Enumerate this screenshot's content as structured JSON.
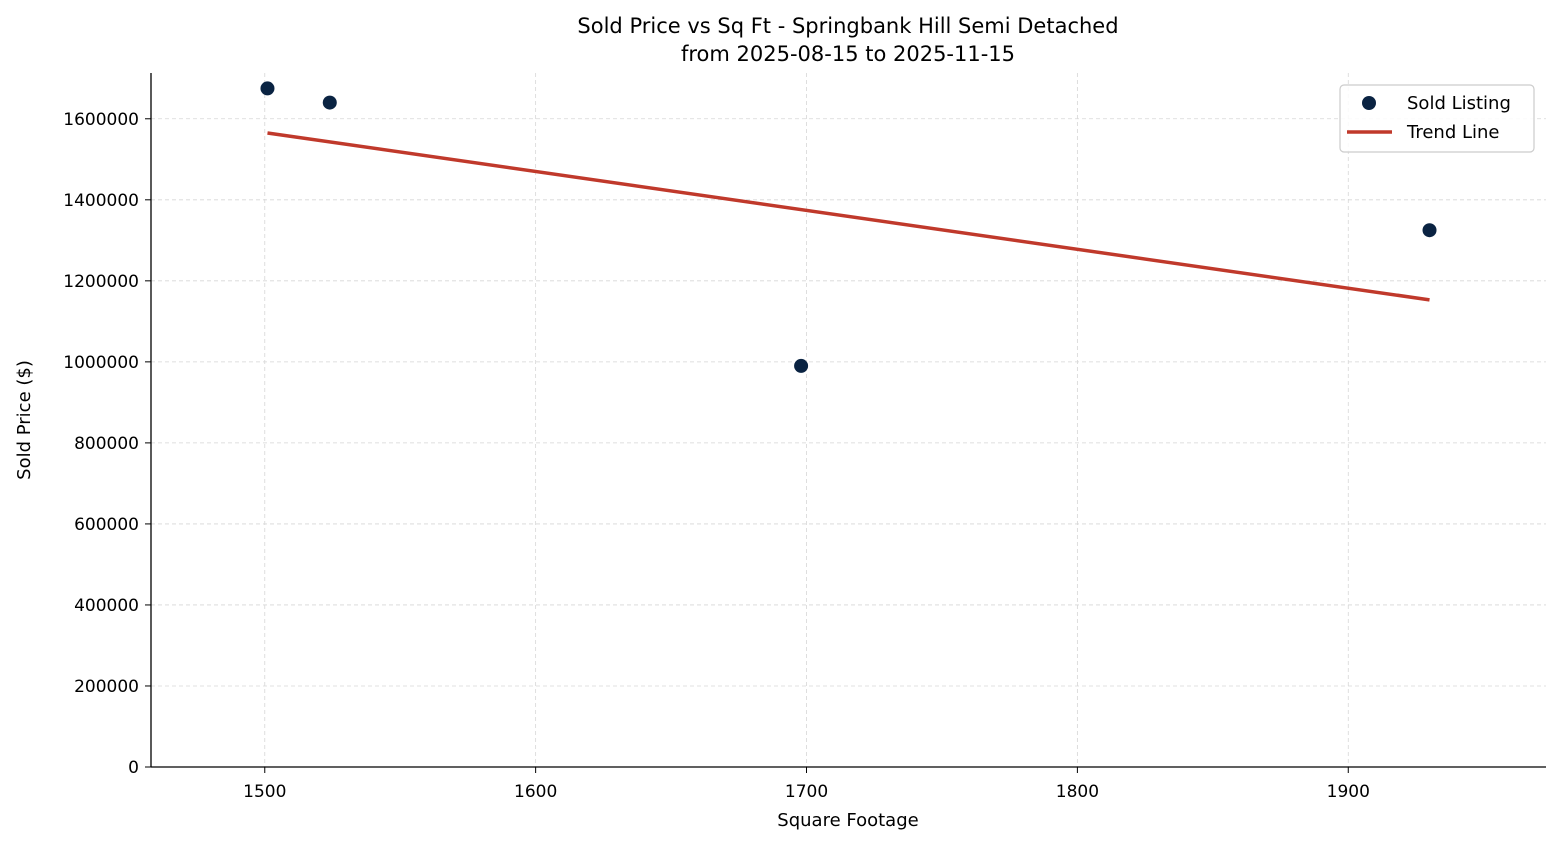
{
  "chart_data": {
    "type": "scatter",
    "title": "Sold Price vs Sq Ft - Springbank Hill Semi Detached",
    "subtitle": "from 2025-08-15 to 2025-11-15",
    "xlabel": "Square Footage",
    "ylabel": "Sold Price ($)",
    "xlim": [
      1458,
      1973
    ],
    "ylim": [
      0,
      1713000
    ],
    "xticks": [
      1500,
      1600,
      1700,
      1800,
      1900
    ],
    "yticks": [
      0,
      200000,
      400000,
      600000,
      800000,
      1000000,
      1200000,
      1400000,
      1600000
    ],
    "grid": true,
    "legend_position": "top-right",
    "series": [
      {
        "name": "Sold Listing",
        "kind": "scatter",
        "color": "#0a2342",
        "points": [
          [
            1501,
            1675000
          ],
          [
            1524,
            1640000
          ],
          [
            1698,
            990000
          ],
          [
            1930,
            1325000
          ]
        ]
      },
      {
        "name": "Trend Line",
        "kind": "line",
        "color": "#c0392b",
        "points": [
          [
            1501,
            1565000
          ],
          [
            1930,
            1153000
          ]
        ]
      }
    ]
  }
}
